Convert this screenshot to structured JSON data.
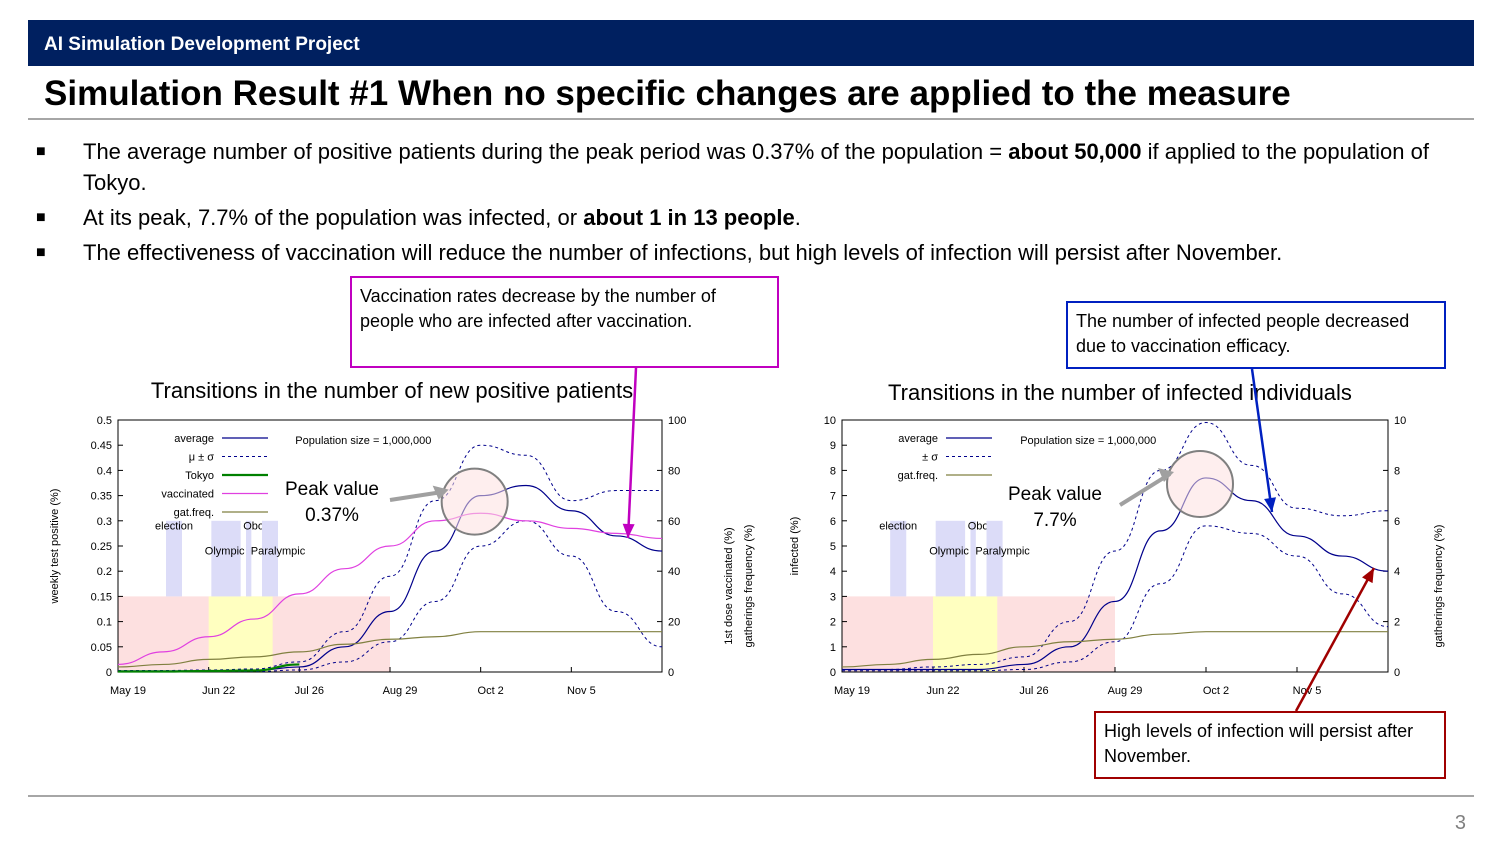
{
  "header": {
    "project": "AI Simulation Development Project",
    "title": "Simulation Result #1 When no specific changes are applied to the measure",
    "page_number": "3"
  },
  "bullets": [
    {
      "mark": "■",
      "parts": [
        "The average number of positive patients during the peak period was 0.37% of the population = ",
        "about 50,000",
        " if applied to the population of Tokyo."
      ]
    },
    {
      "mark": "■",
      "parts": [
        "At its peak, 7.7% of the population was infected, or ",
        "about 1 in 13 people",
        "."
      ]
    },
    {
      "mark": "■",
      "parts": [
        "The effectiveness of vaccination will reduce the number of infections, but high levels of infection will persist after November.",
        "",
        ""
      ]
    }
  ],
  "callouts": {
    "vaccination": "Vaccination rates decrease by the number of people who are infected after vaccination.",
    "efficacy": "The number of infected people decreased due to vaccination efficacy.",
    "persist": "High levels of infection will persist after November."
  },
  "colors": {
    "banner": "#002060",
    "average": "#00008b",
    "sigma": "#00008b",
    "tokyo": "#008000",
    "vaccinated": "#e040e0",
    "gathering": "#808040",
    "event_band": "#dcdcf8",
    "pink_band": "#fde0e0",
    "yellow_band": "#ffffc0",
    "callout_vacc": "#c000c0",
    "callout_eff": "#0020c0",
    "callout_high": "#a00000"
  },
  "chart_data": [
    {
      "type": "line",
      "title": "Transitions in the number of new positive patients",
      "ylabel": "weekly test positive (%)",
      "y2label": [
        "1st dose vaccinated (%)",
        "gatherings frequency (%)"
      ],
      "ylim": [
        0,
        0.5
      ],
      "y2lim": [
        0,
        100
      ],
      "yticks": [
        "0",
        "0.05",
        "0.1",
        "0.15",
        "0.2",
        "0.25",
        "0.3",
        "0.35",
        "0.4",
        "0.45",
        "0.5"
      ],
      "y2ticks": [
        "0",
        "20",
        "40",
        "60",
        "80",
        "100"
      ],
      "xticks": [
        "May 19",
        "Jun 22",
        "Jul 26",
        "Aug 29",
        "Oct 2",
        "Nov 5"
      ],
      "population_note": "Population size = 1,000,000",
      "legend": [
        "average",
        "μ ± σ",
        "Tokyo",
        "vaccinated",
        "gat.freq."
      ],
      "events": [
        "election",
        "Olympic",
        "Obon",
        "Paralympic"
      ],
      "peak_label": "Peak value\n0.37%",
      "x_days": [
        0,
        17,
        34,
        51,
        68,
        85,
        102,
        119,
        136,
        153,
        170,
        187,
        204
      ],
      "series": [
        {
          "name": "average",
          "axis": "left",
          "values": [
            0.002,
            0.002,
            0.002,
            0.003,
            0.01,
            0.05,
            0.12,
            0.24,
            0.35,
            0.37,
            0.32,
            0.27,
            0.24
          ]
        },
        {
          "name": "μ ± σ",
          "axis": "left",
          "values": [
            0.003,
            0.003,
            0.004,
            0.006,
            0.02,
            0.08,
            0.19,
            0.34,
            0.45,
            0.43,
            0.34,
            0.36,
            0.36
          ]
        },
        {
          "name": "μ ± σ",
          "axis": "left",
          "values": [
            0.001,
            0.001,
            0.001,
            0.001,
            0.004,
            0.02,
            0.06,
            0.14,
            0.25,
            0.3,
            0.23,
            0.12,
            0.05
          ]
        },
        {
          "name": "Tokyo",
          "axis": "left",
          "values": [
            0.001,
            0.001,
            0.002,
            0.003,
            0.015,
            null,
            null,
            null,
            null,
            null,
            null,
            null,
            null
          ]
        },
        {
          "name": "vaccinated",
          "axis": "right",
          "values": [
            3,
            8,
            14,
            21,
            31,
            41,
            50,
            60,
            63,
            60,
            57,
            55,
            53
          ]
        },
        {
          "name": "gat.freq.",
          "axis": "right",
          "values": [
            2,
            3,
            5,
            6,
            8,
            11,
            13,
            14,
            16,
            16,
            16,
            16,
            16
          ]
        }
      ]
    },
    {
      "type": "line",
      "title": "Transitions in the number of infected individuals",
      "ylabel": "infected (%)",
      "y2label": [
        "gatherings frequency (%)"
      ],
      "ylim": [
        0,
        10
      ],
      "y2lim": [
        0,
        10
      ],
      "yticks": [
        "0",
        "1",
        "2",
        "3",
        "4",
        "5",
        "6",
        "7",
        "8",
        "9",
        "10"
      ],
      "y2ticks": [
        "0",
        "2",
        "4",
        "6",
        "8",
        "10"
      ],
      "xticks": [
        "May 19",
        "Jun 22",
        "Jul 26",
        "Aug 29",
        "Oct 2",
        "Nov 5"
      ],
      "population_note": "Population size = 1,000,000",
      "legend": [
        "average",
        "± σ",
        "gat.freq."
      ],
      "events": [
        "election",
        "Olympic",
        "Obon",
        "Paralympic"
      ],
      "peak_label": "Peak value\n7.7%",
      "x_days": [
        0,
        17,
        34,
        51,
        68,
        85,
        102,
        119,
        136,
        153,
        170,
        187,
        204
      ],
      "series": [
        {
          "name": "average",
          "axis": "left",
          "values": [
            0.1,
            0.1,
            0.1,
            0.1,
            0.3,
            1.0,
            2.8,
            5.6,
            7.7,
            6.8,
            5.4,
            4.6,
            4.0
          ]
        },
        {
          "name": "± σ",
          "axis": "left",
          "values": [
            0.1,
            0.1,
            0.2,
            0.3,
            0.6,
            2.0,
            4.8,
            8.0,
            9.9,
            8.2,
            6.5,
            6.2,
            6.4
          ]
        },
        {
          "name": "± σ",
          "axis": "left",
          "values": [
            0.05,
            0.05,
            0.05,
            0.05,
            0.1,
            0.4,
            1.2,
            3.5,
            5.8,
            5.5,
            4.6,
            3.1,
            1.8
          ]
        },
        {
          "name": "gat.freq.",
          "axis": "right",
          "values": [
            0.2,
            0.3,
            0.5,
            0.7,
            1.0,
            1.2,
            1.3,
            1.5,
            1.6,
            1.6,
            1.6,
            1.6,
            1.6
          ]
        }
      ]
    }
  ]
}
